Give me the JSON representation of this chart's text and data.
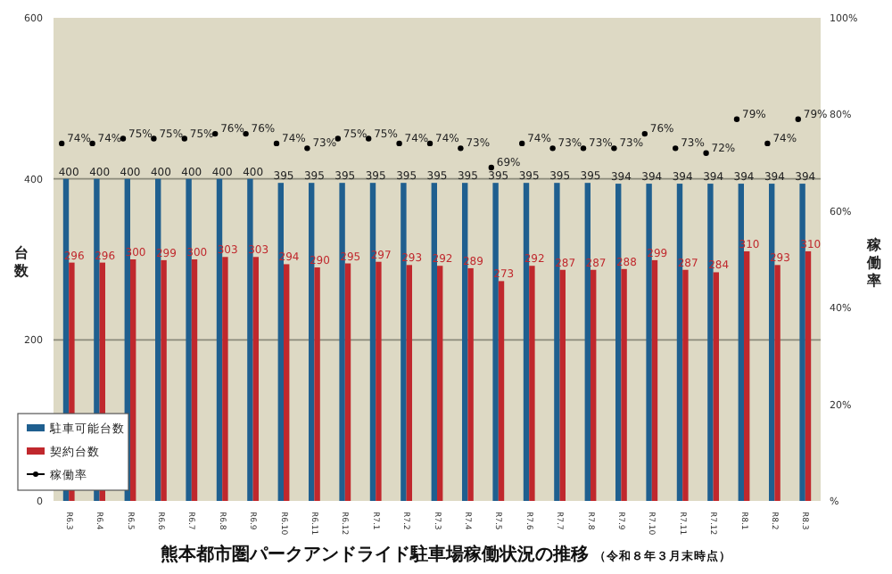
{
  "chart_data": {
    "type": "bar",
    "title": "熊本都市圏パークアンドライド駐車場稼働状況の推移",
    "subtitle": "（令和８年３月末時点）",
    "ylabel": "台数",
    "y2label": "稼働率",
    "categories": [
      "R6.3",
      "R6.4",
      "R6.5",
      "R6.6",
      "R6.7",
      "R6.8",
      "R6.9",
      "R6.10",
      "R6.11",
      "R6.12",
      "R7.1",
      "R7.2",
      "R7.3",
      "R7.4",
      "R7.5",
      "R7.6",
      "R7.7",
      "R7.8",
      "R7.9",
      "R7.10",
      "R7.11",
      "R7.12",
      "R8.1",
      "R8.2",
      "R8.3"
    ],
    "series": [
      {
        "name": "駐車可能台数",
        "color": "#1f5f8f",
        "values": [
          400,
          400,
          400,
          400,
          400,
          400,
          400,
          395,
          395,
          395,
          395,
          395,
          395,
          395,
          395,
          395,
          395,
          395,
          394,
          394,
          394,
          394,
          394,
          394,
          394
        ]
      },
      {
        "name": "契約台数",
        "color": "#c0282d",
        "values": [
          296,
          296,
          300,
          299,
          300,
          303,
          303,
          294,
          290,
          295,
          297,
          293,
          292,
          289,
          273,
          292,
          287,
          287,
          288,
          299,
          287,
          284,
          310,
          293,
          310
        ]
      },
      {
        "name": "稼働率",
        "type": "scatter",
        "axis": "y2",
        "marker": "circle",
        "color": "#000000",
        "values": [
          74,
          74,
          75,
          75,
          75,
          76,
          76,
          74,
          73,
          75,
          75,
          74,
          74,
          73,
          69,
          74,
          73,
          73,
          73,
          76,
          73,
          72,
          79,
          74,
          79
        ],
        "value_labels": [
          "74%",
          "74%",
          "75%",
          "75%",
          "75%",
          "76%",
          "76%",
          "74%",
          "73%",
          "75%",
          "75%",
          "74%",
          "74%",
          "73%",
          "69%",
          "74%",
          "73%",
          "73%",
          "73%",
          "76%",
          "73%",
          "72%",
          "79%",
          "74%",
          "79%"
        ]
      }
    ],
    "ylim": [
      0,
      600
    ],
    "yticks": [
      0,
      200,
      400,
      600
    ],
    "y2lim": [
      0,
      100
    ],
    "y2ticks": [
      {
        "value": 0,
        "label": "%"
      },
      {
        "value": 20,
        "label": "20%"
      },
      {
        "value": 40,
        "label": "40%"
      },
      {
        "value": 60,
        "label": "60%"
      },
      {
        "value": 80,
        "label": "80%"
      },
      {
        "value": 100,
        "label": "100%"
      }
    ],
    "grid": "y",
    "legend": "bottom left",
    "data_labels": true
  }
}
